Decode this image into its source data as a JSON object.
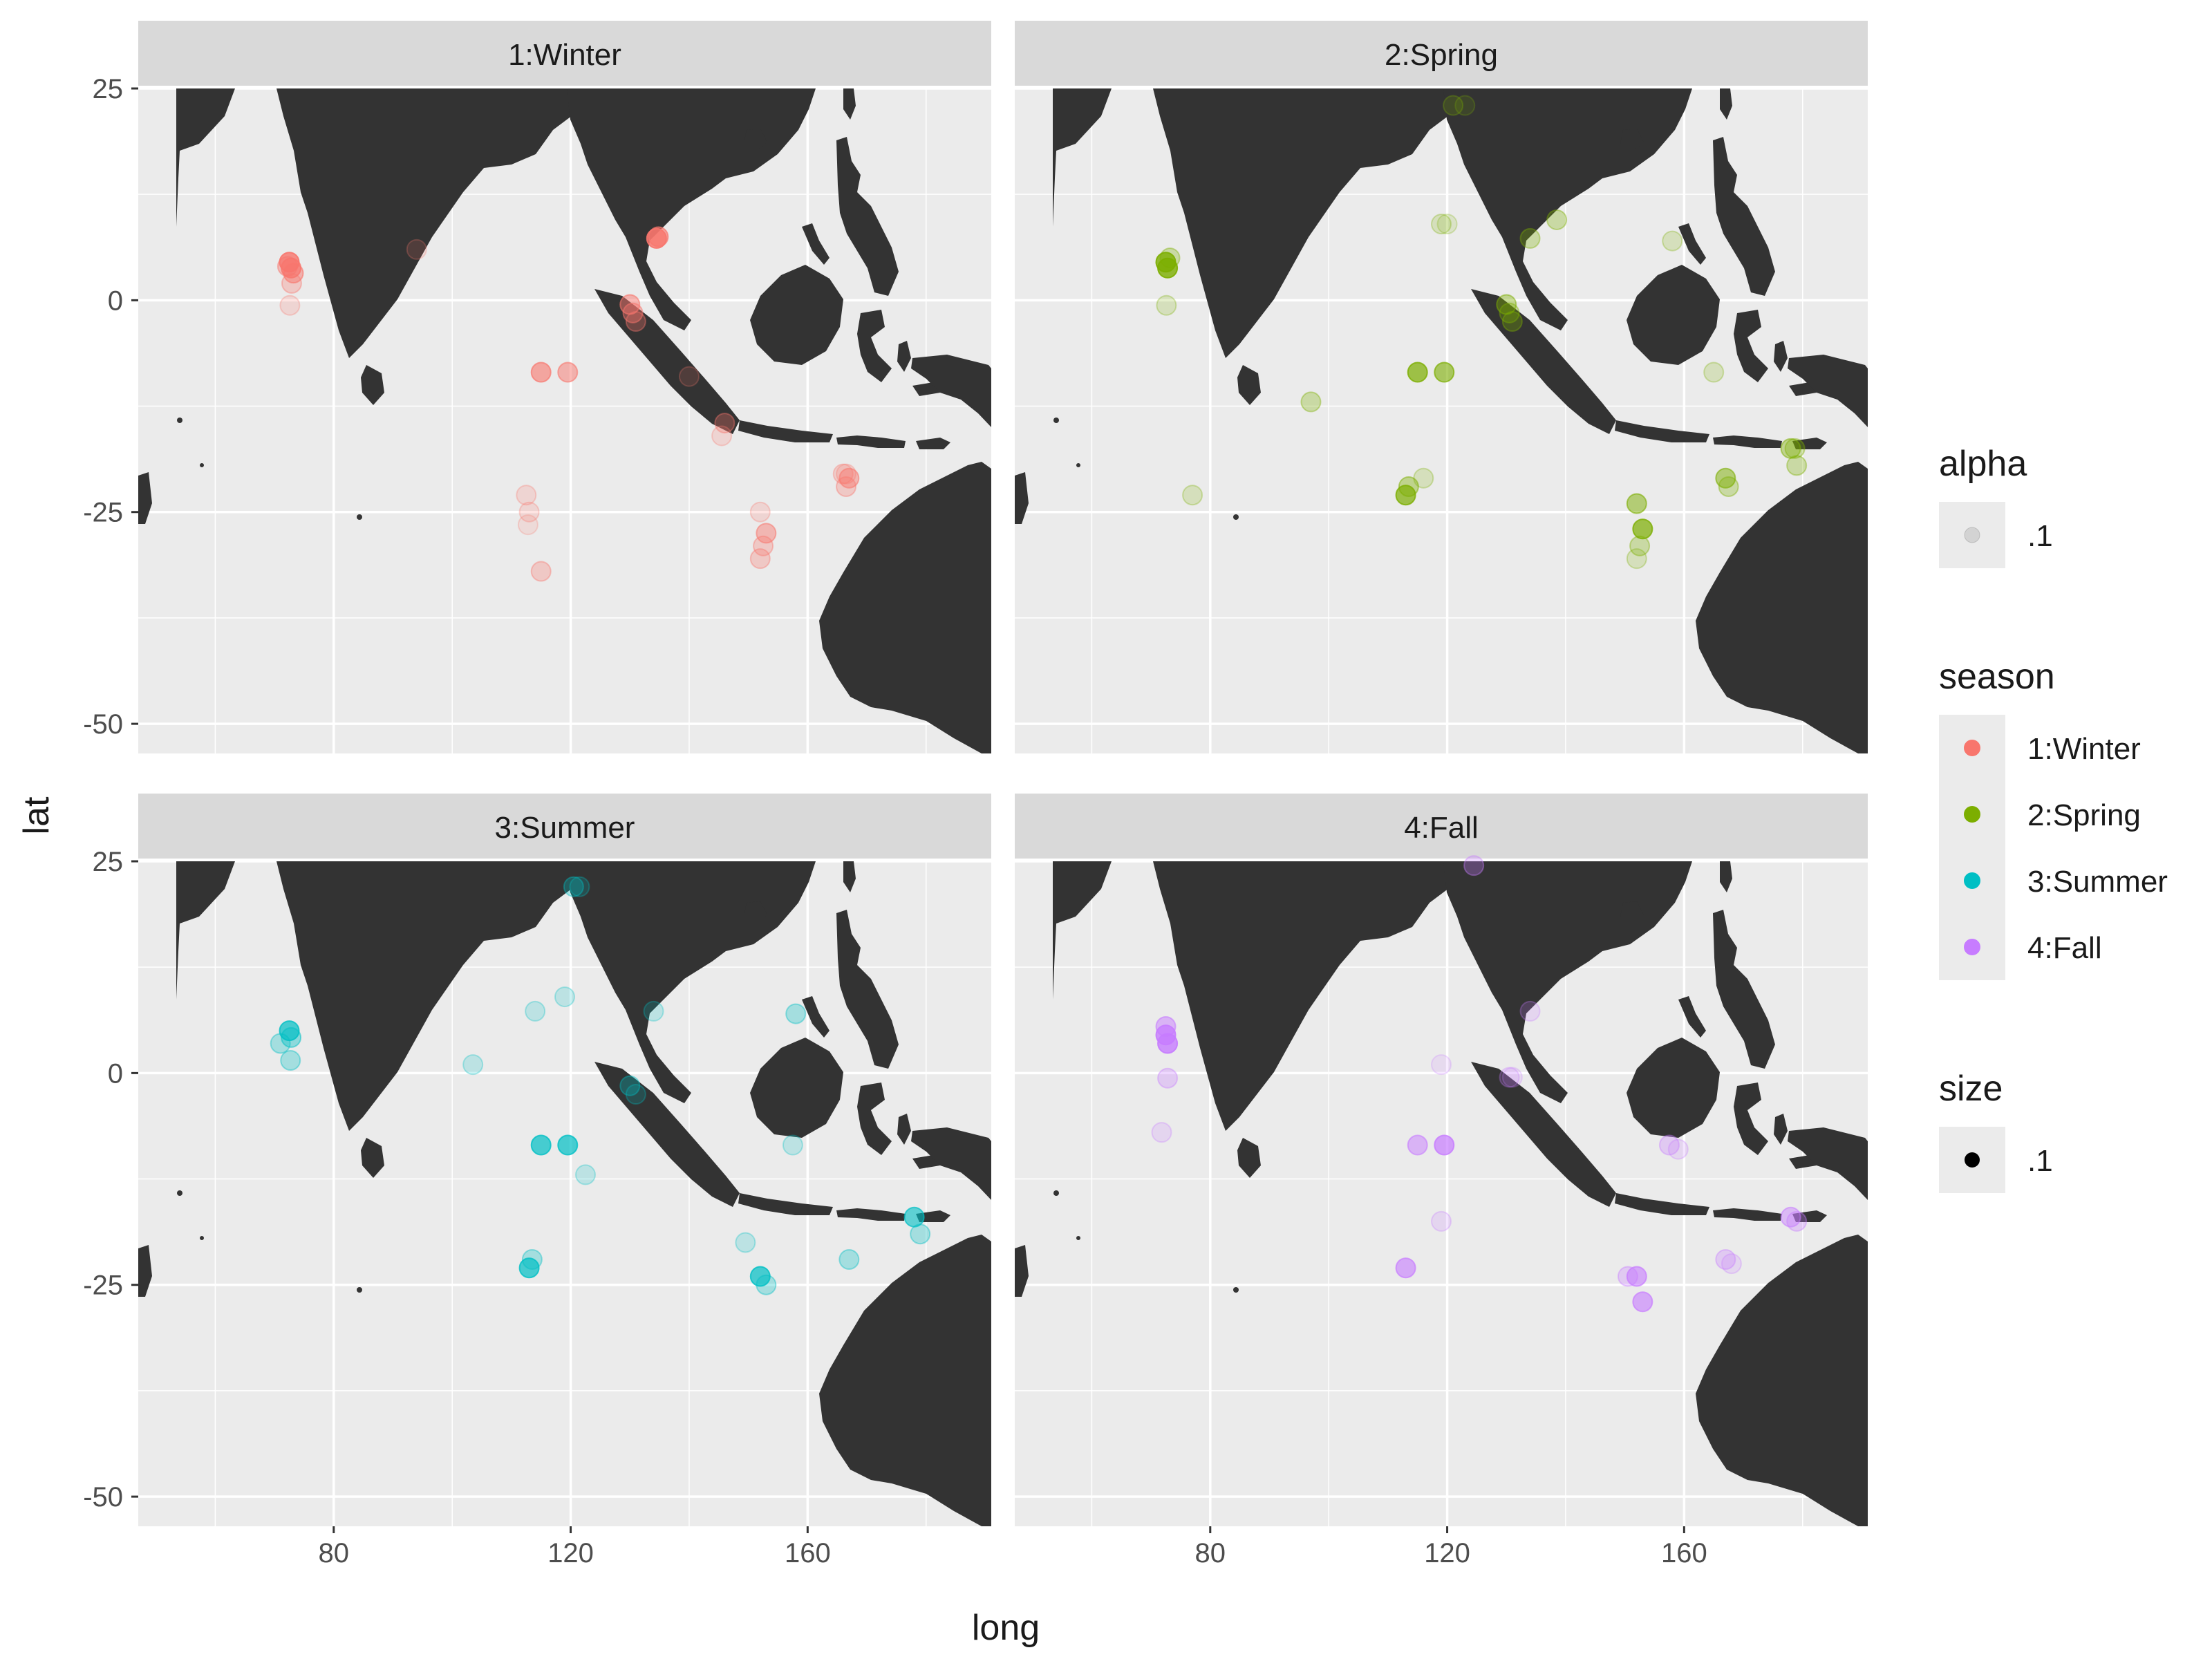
{
  "colors": {
    "panel_bg": "#ebebeb",
    "strip_bg": "#d9d9d9",
    "grid": "#ffffff",
    "land": "#333333",
    "text": "#1a1a1a",
    "tick_text": "#4d4d4d",
    "legend_key_bg": "#ebebeb"
  },
  "chart_data": {
    "type": "scatter",
    "facet_by": "season",
    "xlabel": "long",
    "ylabel": "lat",
    "xlim": [
      47,
      191
    ],
    "ylim": [
      -53.5,
      25
    ],
    "x_ticks": [
      80,
      120,
      160
    ],
    "x_tick_labels": [
      "80",
      "120",
      "160"
    ],
    "y_ticks": [
      25,
      0,
      -25,
      -50
    ],
    "y_tick_labels": [
      "25",
      "0",
      "-25",
      "-50"
    ],
    "grid": true,
    "legend_position": "right",
    "panels": [
      {
        "label": "1:Winter",
        "color": "#f8766d",
        "points": [
          [
            72.5,
            4.5,
            0.8
          ],
          [
            72.8,
            3.8,
            0.7
          ],
          [
            73.2,
            3.2,
            0.5
          ],
          [
            72.9,
            2.0,
            0.3
          ],
          [
            72.6,
            -0.6,
            0.2
          ],
          [
            72.2,
            4.0,
            0.4
          ],
          [
            94,
            6,
            0.15
          ],
          [
            115,
            -8.5,
            0.6
          ],
          [
            119.5,
            -8.5,
            0.5
          ],
          [
            130,
            -0.5,
            0.5
          ],
          [
            130.5,
            -1.5,
            0.4
          ],
          [
            131,
            -2.5,
            0.3
          ],
          [
            134.5,
            7.3,
            0.8
          ],
          [
            134.8,
            7.5,
            0.6
          ],
          [
            140,
            -9,
            0.15
          ],
          [
            146,
            -14.5,
            0.3
          ],
          [
            145.5,
            -16,
            0.2
          ],
          [
            112.5,
            -23,
            0.2
          ],
          [
            113,
            -25,
            0.2
          ],
          [
            112.8,
            -26.5,
            0.15
          ],
          [
            115,
            -32,
            0.3
          ],
          [
            152,
            -25,
            0.2
          ],
          [
            153,
            -27.5,
            0.45
          ],
          [
            152.5,
            -29,
            0.3
          ],
          [
            152,
            -30.5,
            0.3
          ],
          [
            167,
            -21,
            0.45
          ],
          [
            166.5,
            -22,
            0.3
          ],
          [
            166,
            -20.5,
            0.25
          ],
          [
            166.5,
            -20.5,
            0.2
          ]
        ]
      },
      {
        "label": "2:Spring",
        "color": "#7cae00",
        "points": [
          [
            72.5,
            4.5,
            0.8
          ],
          [
            72.8,
            3.8,
            0.8
          ],
          [
            73.2,
            5.0,
            0.3
          ],
          [
            72.6,
            -0.6,
            0.2
          ],
          [
            97,
            -12,
            0.3
          ],
          [
            77,
            -23,
            0.2
          ],
          [
            115,
            -8.5,
            0.7
          ],
          [
            119.5,
            -8.5,
            0.6
          ],
          [
            113,
            -23,
            0.7
          ],
          [
            113.5,
            -22,
            0.4
          ],
          [
            116,
            -21,
            0.2
          ],
          [
            119,
            9,
            0.2
          ],
          [
            120,
            9,
            0.15
          ],
          [
            134,
            7.3,
            0.3
          ],
          [
            138.5,
            9.5,
            0.3
          ],
          [
            158,
            7,
            0.2
          ],
          [
            130,
            -0.5,
            0.4
          ],
          [
            130.5,
            -1.5,
            0.3
          ],
          [
            131,
            -2.5,
            0.3
          ],
          [
            152,
            -24,
            0.5
          ],
          [
            153,
            -27,
            0.7
          ],
          [
            152.5,
            -29,
            0.3
          ],
          [
            152,
            -30.5,
            0.2
          ],
          [
            167,
            -21,
            0.5
          ],
          [
            167.5,
            -22,
            0.3
          ],
          [
            178,
            -17.5,
            0.4
          ],
          [
            179,
            -19.5,
            0.3
          ],
          [
            178.7,
            -17.5,
            0.3
          ],
          [
            165,
            -8.5,
            0.2
          ],
          [
            121,
            23,
            0.2
          ],
          [
            123,
            23,
            0.15
          ]
        ]
      },
      {
        "label": "3:Summer",
        "color": "#00bfc4",
        "points": [
          [
            72.5,
            5.0,
            0.7
          ],
          [
            72.8,
            4.2,
            0.4
          ],
          [
            71,
            3.5,
            0.3
          ],
          [
            72.7,
            1.5,
            0.3
          ],
          [
            103.5,
            1,
            0.2
          ],
          [
            114,
            7.3,
            0.2
          ],
          [
            119,
            9,
            0.2
          ],
          [
            115,
            -8.5,
            0.7
          ],
          [
            119.5,
            -8.5,
            0.7
          ],
          [
            113,
            -23,
            0.7
          ],
          [
            113.5,
            -22,
            0.3
          ],
          [
            122.5,
            -12,
            0.2
          ],
          [
            130,
            -1.5,
            0.3
          ],
          [
            131,
            -2.5,
            0.2
          ],
          [
            134,
            7.3,
            0.2
          ],
          [
            158,
            7,
            0.3
          ],
          [
            157.5,
            -8.5,
            0.2
          ],
          [
            120.5,
            22,
            0.3
          ],
          [
            121.5,
            22,
            0.2
          ],
          [
            152,
            -24,
            0.7
          ],
          [
            153,
            -25,
            0.3
          ],
          [
            149.5,
            -20,
            0.2
          ],
          [
            167,
            -22,
            0.3
          ],
          [
            178,
            -17,
            0.6
          ],
          [
            179,
            -19,
            0.3
          ]
        ]
      },
      {
        "label": "4:Fall",
        "color": "#c77cff",
        "points": [
          [
            72.5,
            4.5,
            0.8
          ],
          [
            72.8,
            3.5,
            0.8
          ],
          [
            72.5,
            5.5,
            0.5
          ],
          [
            72.8,
            -0.6,
            0.3
          ],
          [
            71.8,
            -7,
            0.2
          ],
          [
            115,
            -8.5,
            0.5
          ],
          [
            119.5,
            -8.5,
            0.7
          ],
          [
            113,
            -23,
            0.6
          ],
          [
            119,
            -17.5,
            0.2
          ],
          [
            124.5,
            24.5,
            0.3
          ],
          [
            134,
            7.3,
            0.2
          ],
          [
            130.5,
            -0.5,
            0.2
          ],
          [
            131,
            -0.5,
            0.15
          ],
          [
            152,
            -24,
            0.6
          ],
          [
            153,
            -27,
            0.6
          ],
          [
            150.5,
            -24,
            0.3
          ],
          [
            157.5,
            -8.5,
            0.3
          ],
          [
            159,
            -9,
            0.2
          ],
          [
            167,
            -22,
            0.3
          ],
          [
            168,
            -22.5,
            0.2
          ],
          [
            178,
            -17,
            0.45
          ],
          [
            179,
            -17.5,
            0.3
          ],
          [
            119,
            1,
            0.15
          ]
        ]
      }
    ],
    "legend": {
      "alpha": {
        "title": "alpha",
        "label": ".1"
      },
      "season": {
        "title": "season",
        "items": [
          {
            "label": "1:Winter",
            "color": "#f8766d"
          },
          {
            "label": "2:Spring",
            "color": "#7cae00"
          },
          {
            "label": "3:Summer",
            "color": "#00bfc4"
          },
          {
            "label": "4:Fall",
            "color": "#c77cff"
          }
        ]
      },
      "size": {
        "title": "size",
        "label": ".1"
      }
    }
  }
}
